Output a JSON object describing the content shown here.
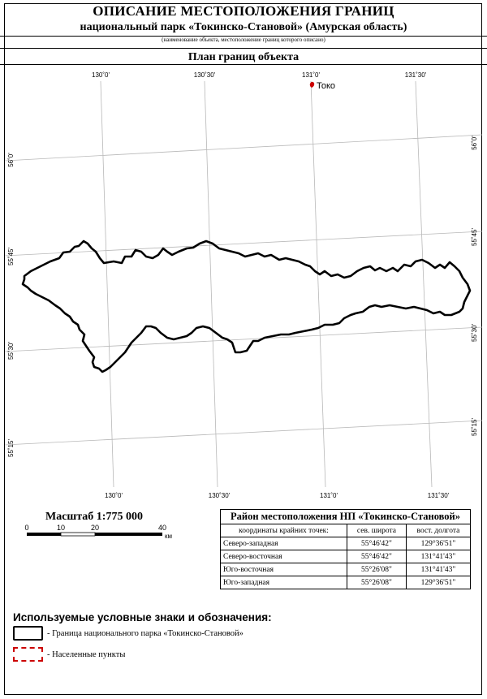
{
  "header": {
    "title": "ОПИСАНИЕ МЕСТОПОЛОЖЕНИЯ ГРАНИЦ",
    "subtitle": "национальный парк «Токинско-Становой» (Амурская область)",
    "caption": "(наименование объекта, местоположение границ которого описано)",
    "plan_title": "План границ объекта"
  },
  "map": {
    "lon_labels_top": [
      "130˚0'",
      "130˚30'",
      "131˚0'",
      "131˚30'"
    ],
    "lon_labels_bottom": [
      "130˚0'",
      "130˚30'",
      "131˚0'",
      "131˚30'"
    ],
    "lat_labels_left": [
      "56˚0'",
      "55˚45'",
      "55˚30'",
      "55˚15'"
    ],
    "lat_labels_right": [
      "56˚0'",
      "55˚45'",
      "55˚30'",
      "55˚15'"
    ],
    "settlement_label": "Токо",
    "boundary_color": "#000000",
    "settlement_color": "#cc0000"
  },
  "scale": {
    "label": "Масштаб  1:775 000",
    "ticks": [
      "0",
      "10",
      "20",
      "40"
    ],
    "unit": "км"
  },
  "region_table": {
    "title": "Район местоположения НП «Токинско-Становой»",
    "headers": [
      "координаты крайних точек:",
      "сев. широта",
      "вост. долгота"
    ],
    "rows": [
      {
        "point": "Северо-западная",
        "lat": "55°46'42\"",
        "lon": "129°36'51\""
      },
      {
        "point": "Северо-восточная",
        "lat": "55°46'42\"",
        "lon": "131°41'43\""
      },
      {
        "point": "Юго-восточная",
        "lat": "55°26'08\"",
        "lon": "131°41'43\""
      },
      {
        "point": "Юго-западная",
        "lat": "55°26'08\"",
        "lon": "129°36'51\""
      }
    ]
  },
  "legend": {
    "title": "Используемые условные знаки и обозначения:",
    "items": [
      {
        "label": "- Граница национального парка «Токинско-Становой»",
        "style": "solid",
        "color": "#000000"
      },
      {
        "label": "- Населенные пункты",
        "style": "dashed",
        "color": "#cc0000"
      }
    ]
  }
}
